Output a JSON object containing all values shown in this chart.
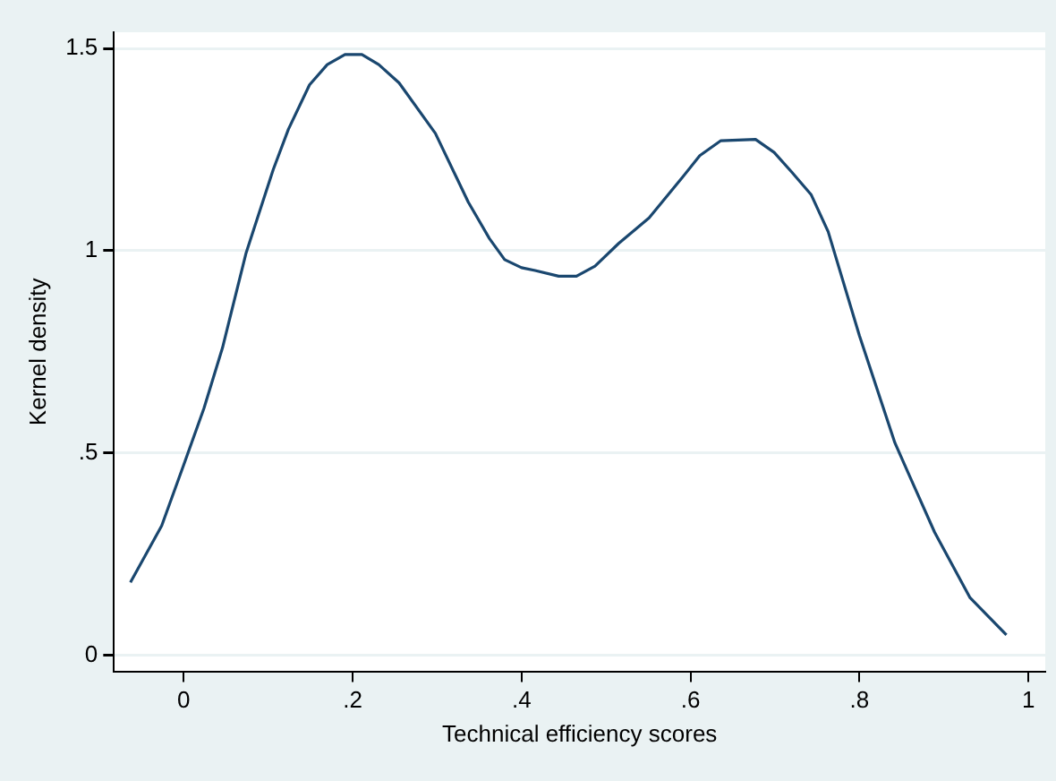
{
  "chart_data": {
    "type": "line",
    "xlabel": "Technical efficiency scores",
    "ylabel": "Kernel density",
    "xlim": [
      -0.0825,
      1.02
    ],
    "ylim": [
      -0.04,
      1.54
    ],
    "xticks": [
      0,
      {
        "value": 0.2,
        "label": ".2"
      },
      {
        "value": 0.4,
        "label": ".4"
      },
      {
        "value": 0.6,
        "label": ".6"
      },
      {
        "value": 0.8,
        "label": ".8"
      },
      1
    ],
    "yticks": [
      0,
      {
        "value": 0.5,
        "label": ".5"
      },
      1,
      1.5
    ],
    "grid": "y",
    "legend": false,
    "marker": "none",
    "line_style": "solid",
    "series": [
      {
        "color": "#1a476f",
        "x": [
          -0.063,
          -0.026,
          0,
          0.024,
          0.046,
          0.074,
          0.106,
          0.124,
          0.149,
          0.17,
          0.191,
          0.211,
          0.231,
          0.255,
          0.298,
          0.337,
          0.362,
          0.38,
          0.4,
          0.416,
          0.444,
          0.465,
          0.487,
          0.515,
          0.551,
          0.59,
          0.611,
          0.636,
          0.677,
          0.699,
          0.72,
          0.743,
          0.763,
          0.8,
          0.842,
          0.867,
          0.889,
          0.931,
          0.974
        ],
        "values": [
          0.18,
          0.32,
          0.47,
          0.61,
          0.76,
          0.995,
          1.2,
          1.3,
          1.41,
          1.46,
          1.485,
          1.485,
          1.46,
          1.415,
          1.29,
          1.12,
          1.03,
          0.978,
          0.958,
          0.951,
          0.937,
          0.937,
          0.962,
          1.018,
          1.081,
          1.18,
          1.235,
          1.272,
          1.275,
          1.243,
          1.194,
          1.138,
          1.047,
          0.79,
          0.525,
          0.407,
          0.304,
          0.142,
          0.05
        ]
      }
    ]
  }
}
